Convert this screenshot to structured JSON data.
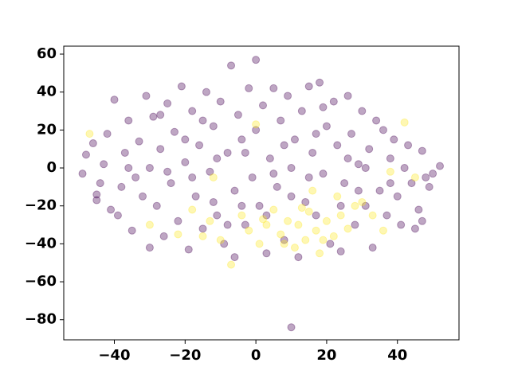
{
  "chart_data": {
    "type": "scatter",
    "xlim": [
      -54.3,
      57.4
    ],
    "ylim": [
      -90.6,
      64.2
    ],
    "xticks": [
      {
        "value": -40,
        "label": "−40"
      },
      {
        "value": -20,
        "label": "−20"
      },
      0,
      20,
      40
    ],
    "yticks": [
      {
        "value": -80,
        "label": "−80"
      },
      {
        "value": -60,
        "label": "−60"
      },
      {
        "value": -40,
        "label": "−40"
      },
      {
        "value": -20,
        "label": "−20"
      },
      0,
      20,
      40,
      60
    ],
    "series": [
      {
        "color": "#440154",
        "x": [
          -49,
          -48,
          -46,
          -45,
          -43,
          -42,
          -40,
          -41,
          -38,
          -37,
          -36,
          -35,
          -34,
          -33,
          -31,
          -30,
          -30,
          -29,
          -28,
          -27,
          -26,
          -25,
          -24,
          -23,
          -22,
          -21,
          -20,
          -19,
          -18,
          -17,
          -16,
          -15,
          -14,
          -13,
          -12,
          -11,
          -10,
          -9,
          -8,
          -7,
          -6,
          -6,
          -5,
          -4,
          -3,
          -2,
          -1,
          0,
          0,
          1,
          2,
          3,
          4,
          5,
          6,
          7,
          8,
          9,
          10,
          10,
          11,
          12,
          13,
          14,
          15,
          16,
          17,
          18,
          19,
          20,
          21,
          22,
          23,
          24,
          25,
          26,
          27,
          28,
          29,
          30,
          31,
          32,
          33,
          34,
          35,
          36,
          37,
          38,
          39,
          40,
          41,
          42,
          43,
          44,
          45,
          46,
          47,
          48,
          49,
          50,
          52,
          -44,
          -39,
          -32,
          -25,
          -18,
          -11,
          -4,
          3,
          10,
          17,
          24,
          31,
          38,
          -27,
          -15,
          -3,
          8,
          19,
          29,
          -36,
          -20,
          5,
          15,
          26,
          -8,
          -12,
          -45,
          47
        ],
        "y": [
          -3,
          7,
          13,
          -14,
          2,
          18,
          36,
          -22,
          -10,
          8,
          25,
          -33,
          -5,
          14,
          38,
          -42,
          0,
          27,
          -20,
          10,
          -36,
          34,
          -8,
          19,
          -28,
          43,
          3,
          -43,
          30,
          -15,
          12,
          -32,
          40,
          -2,
          22,
          -25,
          35,
          -40,
          8,
          54,
          -47,
          -12,
          28,
          15,
          -30,
          42,
          -5,
          57,
          20,
          -20,
          33,
          -45,
          5,
          42,
          -10,
          25,
          -38,
          38,
          -84,
          0,
          15,
          -47,
          30,
          -18,
          43,
          8,
          -25,
          45,
          -3,
          22,
          -40,
          35,
          12,
          -44,
          -8,
          38,
          18,
          -30,
          2,
          30,
          -20,
          10,
          -42,
          25,
          -12,
          20,
          -25,
          5,
          15,
          -15,
          -30,
          0,
          12,
          -8,
          -32,
          -22,
          9,
          -5,
          -10,
          -3,
          1,
          -8,
          -25,
          -15,
          -2,
          -5,
          5,
          -20,
          -25,
          -15,
          18,
          -20,
          0,
          -8,
          28,
          25,
          8,
          12,
          32,
          -12,
          0,
          15,
          -3,
          -5,
          5,
          -30,
          -18,
          -17,
          -28
        ]
      },
      {
        "color": "#fde725",
        "x": [
          -47,
          -30,
          -22,
          -18,
          -13,
          -10,
          -7,
          -4,
          -2,
          0,
          1,
          3,
          5,
          7,
          9,
          11,
          12,
          14,
          15,
          17,
          18,
          20,
          22,
          24,
          26,
          28,
          30,
          33,
          36,
          38,
          42,
          45,
          -12,
          16,
          23,
          8,
          2,
          -15,
          13,
          19
        ],
        "y": [
          18,
          -30,
          -35,
          -22,
          -28,
          -38,
          -51,
          -25,
          -33,
          23,
          -40,
          -30,
          -22,
          -35,
          -28,
          -42,
          -30,
          -38,
          -23,
          -33,
          -45,
          -28,
          -36,
          -25,
          -32,
          -20,
          -18,
          -25,
          -33,
          -2,
          24,
          -5,
          -5,
          -12,
          -15,
          -40,
          -27,
          -36,
          -21,
          -38
        ]
      }
    ]
  }
}
